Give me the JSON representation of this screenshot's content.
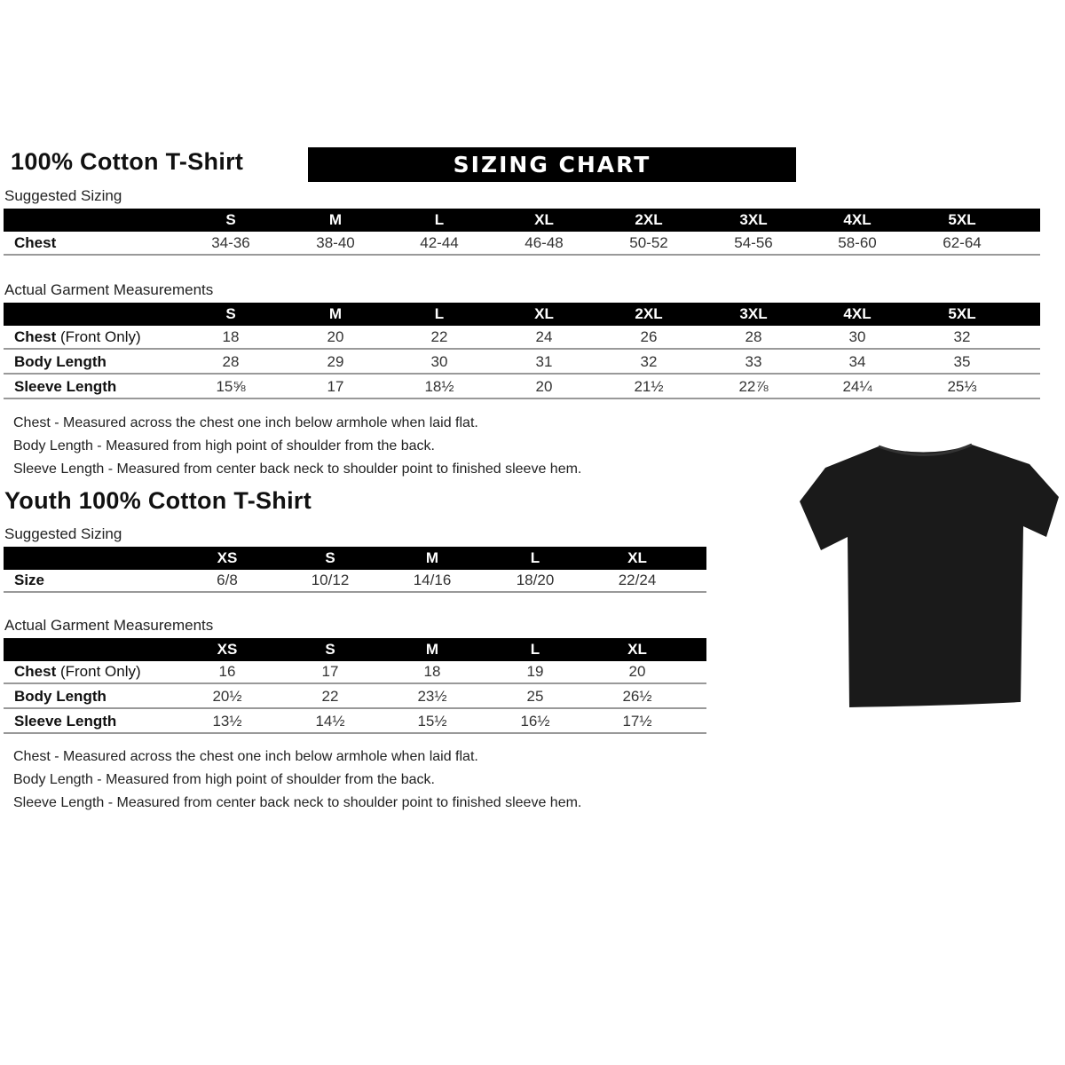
{
  "adult": {
    "title": "100% Cotton T-Shirt",
    "banner": "SIZING CHART",
    "suggested": {
      "label": "Suggested Sizing",
      "sizes": [
        "S",
        "M",
        "L",
        "XL",
        "2XL",
        "3XL",
        "4XL",
        "5XL"
      ],
      "rows": [
        {
          "label": "Chest",
          "label_extra": "",
          "values": [
            "34-36",
            "38-40",
            "42-44",
            "46-48",
            "50-52",
            "54-56",
            "58-60",
            "62-64"
          ]
        }
      ]
    },
    "actual": {
      "label": "Actual Garment Measurements",
      "sizes": [
        "S",
        "M",
        "L",
        "XL",
        "2XL",
        "3XL",
        "4XL",
        "5XL"
      ],
      "rows": [
        {
          "label": "Chest",
          "label_extra": " (Front Only)",
          "values": [
            "18",
            "20",
            "22",
            "24",
            "26",
            "28",
            "30",
            "32"
          ]
        },
        {
          "label": "Body Length",
          "label_extra": "",
          "values": [
            "28",
            "29",
            "30",
            "31",
            "32",
            "33",
            "34",
            "35"
          ]
        },
        {
          "label": "Sleeve Length",
          "label_extra": "",
          "values": [
            "15⅝",
            "17",
            "18½",
            "20",
            "21½",
            "22⅞",
            "24¼",
            "25⅓"
          ]
        }
      ]
    },
    "notes": [
      "Chest - Measured across the chest one inch below armhole when laid flat.",
      "Body Length - Measured from high point of shoulder from the back.",
      "Sleeve Length - Measured from center back neck to shoulder point to finished sleeve hem."
    ]
  },
  "youth": {
    "title": "Youth 100% Cotton T-Shirt",
    "suggested": {
      "label": "Suggested Sizing",
      "sizes": [
        "XS",
        "S",
        "M",
        "L",
        "XL"
      ],
      "rows": [
        {
          "label": "Size",
          "label_extra": "",
          "values": [
            "6/8",
            "10/12",
            "14/16",
            "18/20",
            "22/24"
          ]
        }
      ]
    },
    "actual": {
      "label": "Actual Garment Measurements",
      "sizes": [
        "XS",
        "S",
        "M",
        "L",
        "XL"
      ],
      "rows": [
        {
          "label": "Chest",
          "label_extra": " (Front Only)",
          "values": [
            "16",
            "17",
            "18",
            "19",
            "20"
          ]
        },
        {
          "label": "Body Length",
          "label_extra": "",
          "values": [
            "20½",
            "22",
            "23½",
            "25",
            "26½"
          ]
        },
        {
          "label": "Sleeve Length",
          "label_extra": "",
          "values": [
            "13½",
            "14½",
            "15½",
            "16½",
            "17½"
          ]
        }
      ]
    },
    "notes": [
      "Chest - Measured across the chest one inch below armhole when laid flat.",
      "Body Length - Measured from high point of shoulder from the back.",
      "Sleeve Length - Measured from center back neck to shoulder point to finished sleeve hem."
    ]
  },
  "image": {
    "name": "black-t-shirt",
    "color": "#1a1a1a"
  }
}
